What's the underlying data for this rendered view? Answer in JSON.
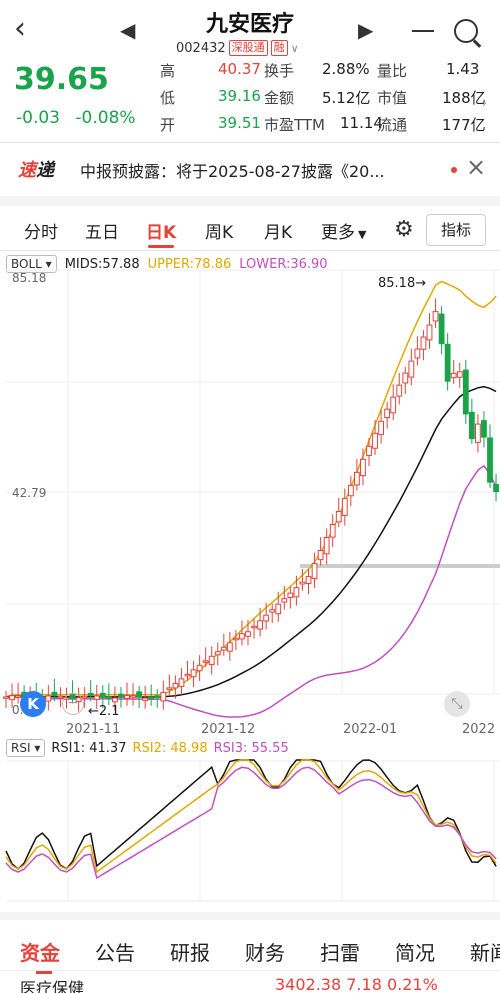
{
  "header": {
    "title": "九安医疗",
    "code": "002432",
    "tag_connect": "深股通",
    "tag_margin": "融",
    "back_icon": "back-arrow-icon",
    "prev_icon": "prev-stock-icon",
    "next_icon": "next-stock-icon"
  },
  "quote": {
    "price": "39.65",
    "change": "-0.03",
    "change_pct": "-0.08%",
    "rows": [
      {
        "l1": "高",
        "v1": "40.37",
        "l2": "换手",
        "v2": "2.88%",
        "l3": "量比",
        "v3": "1.43"
      },
      {
        "l1": "低",
        "v1": "39.16",
        "l2": "金额",
        "v2": "5.12亿",
        "l3": "市值",
        "v3": "188亿"
      },
      {
        "l1": "开",
        "v1": "39.51",
        "l2": "市盈TTM",
        "v2": "11.14",
        "l3": "流通",
        "v3": "177亿"
      }
    ]
  },
  "ticker": {
    "logo_a": "速",
    "logo_b": "递",
    "text": "中报预披露：将于2025-08-27披露《20...",
    "close": "×"
  },
  "period_tabs": {
    "items": [
      "分时",
      "五日",
      "日K",
      "周K",
      "月K",
      "更多"
    ],
    "active": "日K",
    "indicator_button": "指标"
  },
  "boll": {
    "name": "BOLL",
    "mids": "MIDS:57.88",
    "upper": "UPPER:78.86",
    "lower": "LOWER:36.90",
    "y_top": "85.18",
    "y_mid": "42.79",
    "y_bottom": "0.39",
    "max_marker": "85.18",
    "min_marker": "2.1",
    "x_labels": [
      "2021-11",
      "2021-12",
      "2022-01",
      "2022"
    ],
    "colors": {
      "up": "#e2433b",
      "down": "#1aa34a",
      "mid": "#111111",
      "upper": "#e0a800",
      "lower": "#c050c0"
    }
  },
  "rsi": {
    "name": "RSI",
    "rsi1": "RSI1: 41.37",
    "rsi2": "RSI2: 48.98",
    "rsi3": "RSI3: 55.55"
  },
  "bottom_tabs": {
    "items": [
      "资金",
      "公告",
      "研报",
      "财务",
      "扫雷",
      "简况",
      "新闻"
    ],
    "active": "资金"
  },
  "sector": {
    "name": "医疗保健",
    "value": "3402.38  7.18  0.21%"
  },
  "badges": {
    "k": "K"
  }
}
